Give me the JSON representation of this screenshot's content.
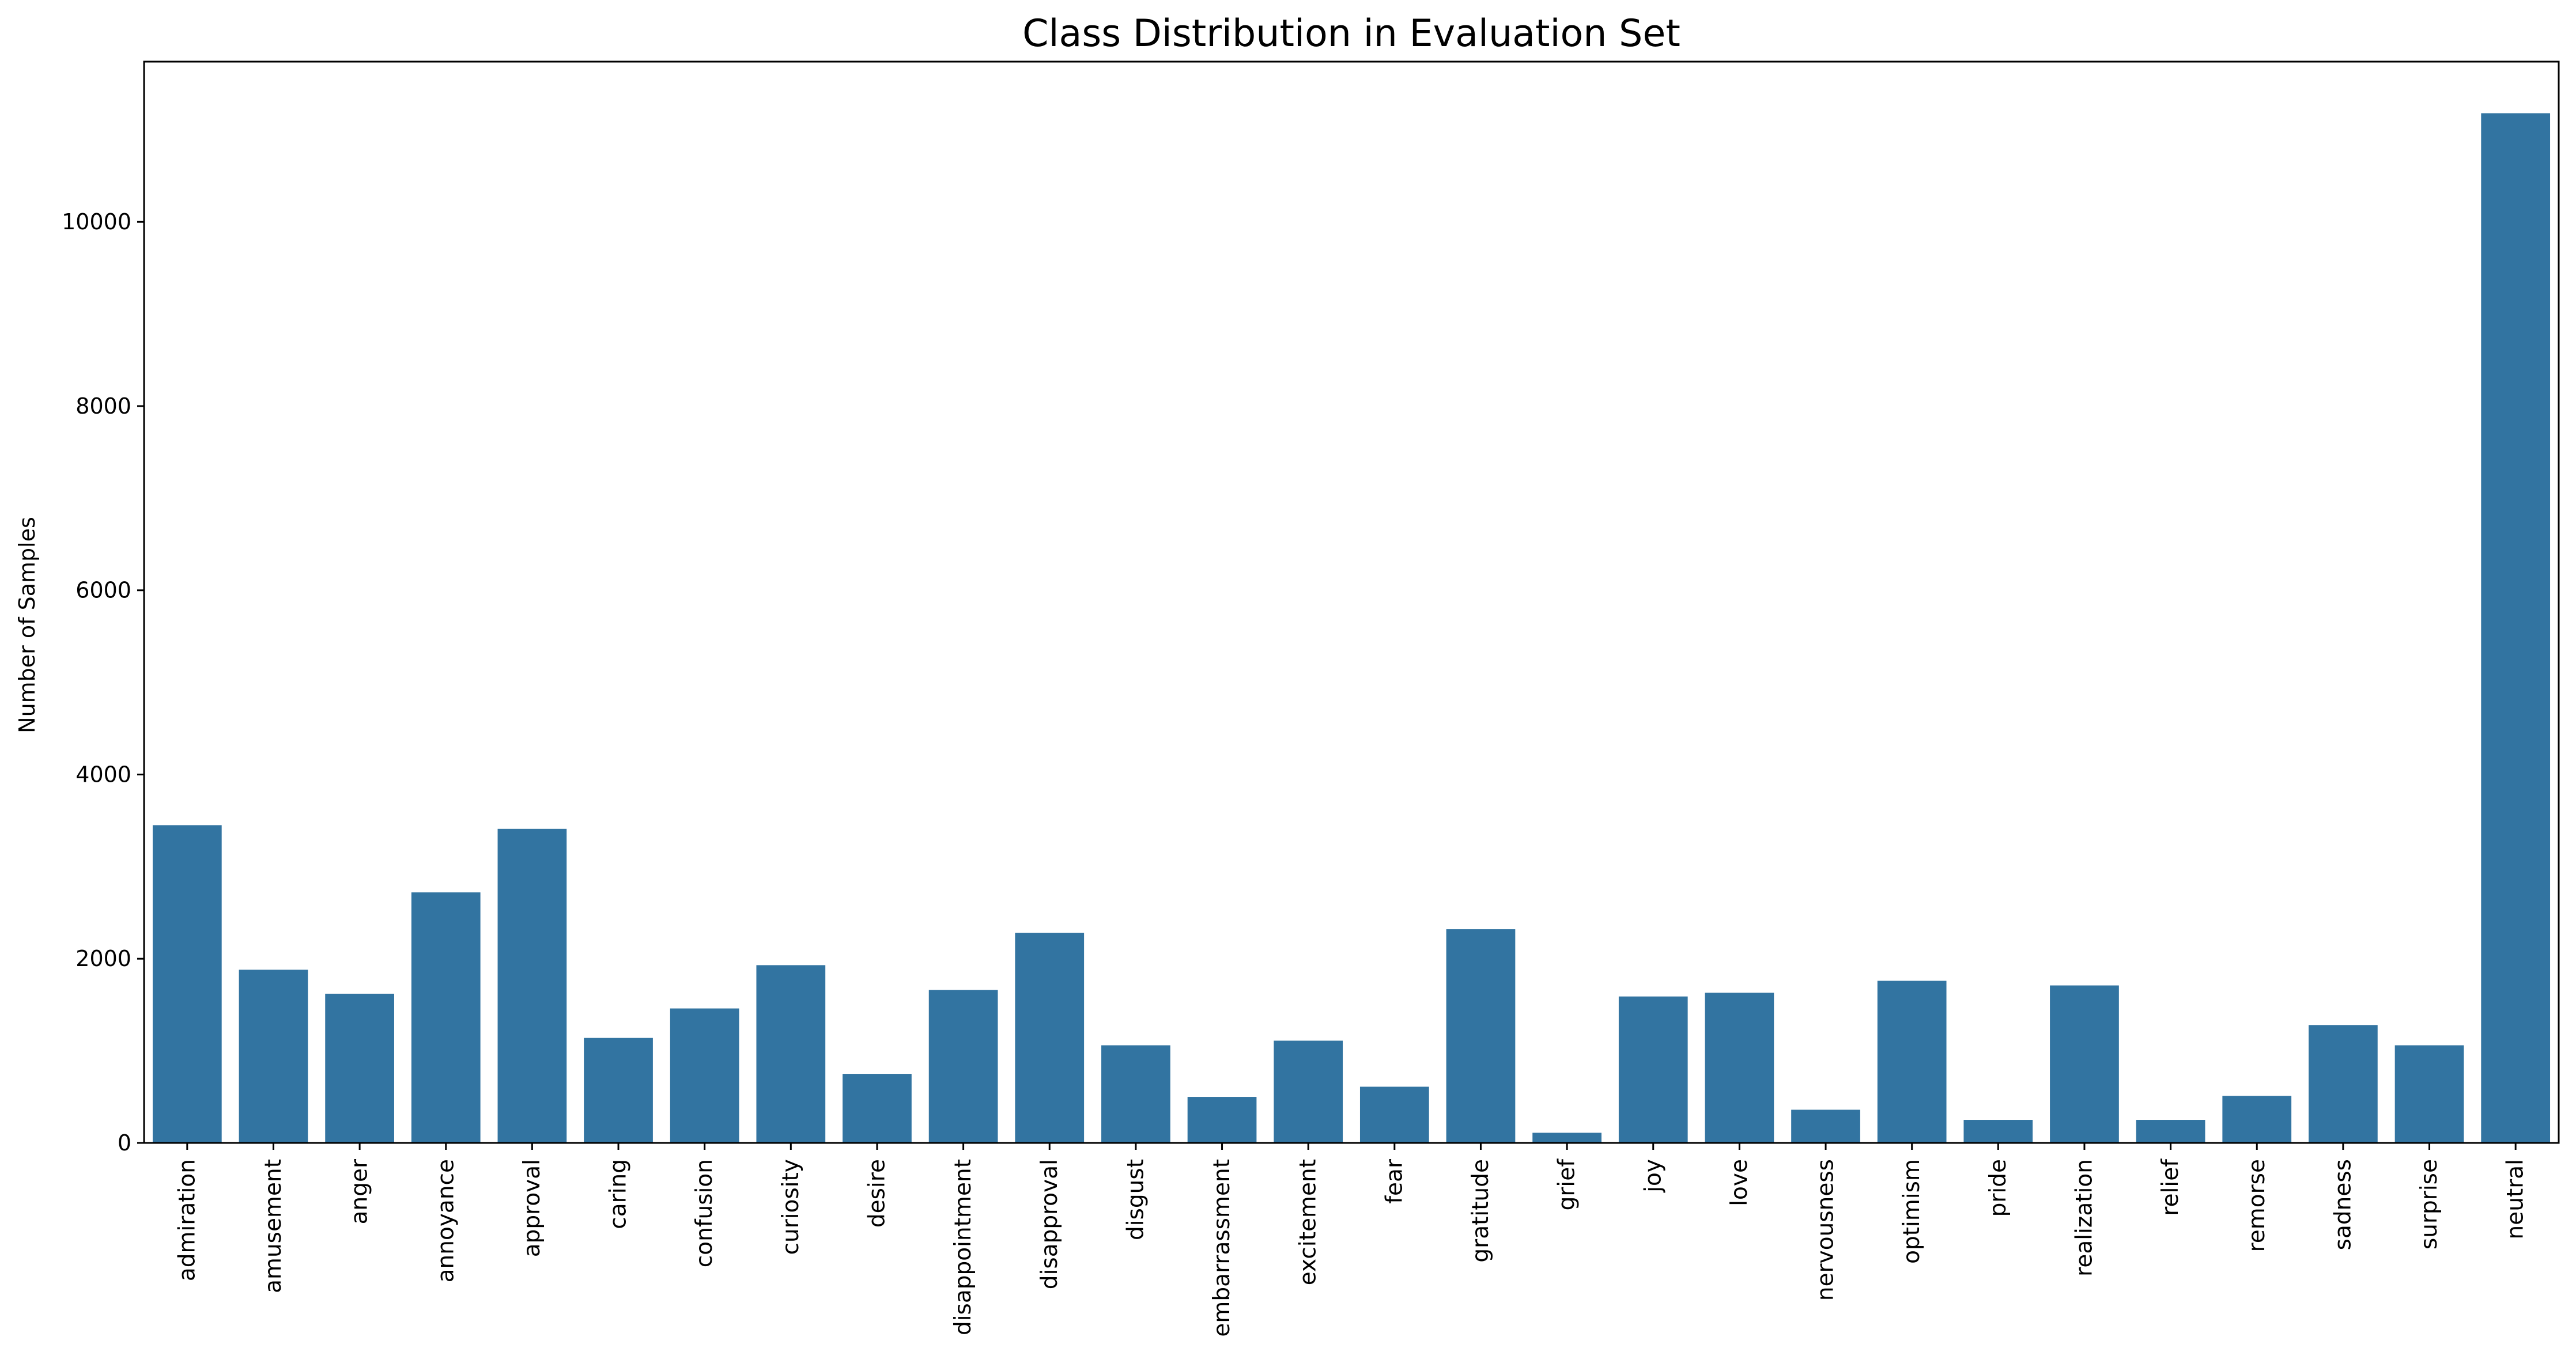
{
  "chart_data": {
    "type": "bar",
    "title": "Class Distribution in Evaluation Set",
    "xlabel": "",
    "ylabel": "Number of Samples",
    "categories": [
      "admiration",
      "amusement",
      "anger",
      "annoyance",
      "approval",
      "caring",
      "confusion",
      "curiosity",
      "desire",
      "disappointment",
      "disapproval",
      "disgust",
      "embarrassment",
      "excitement",
      "fear",
      "gratitude",
      "grief",
      "joy",
      "love",
      "nervousness",
      "optimism",
      "pride",
      "realization",
      "relief",
      "remorse",
      "sadness",
      "surprise",
      "neutral"
    ],
    "values": [
      3450,
      1880,
      1620,
      2720,
      3410,
      1140,
      1460,
      1930,
      750,
      1660,
      2280,
      1060,
      500,
      1110,
      610,
      2320,
      110,
      1590,
      1630,
      360,
      1760,
      250,
      1710,
      250,
      510,
      1280,
      1060,
      11180
    ],
    "yticks": [
      0,
      2000,
      4000,
      6000,
      8000,
      10000
    ],
    "ylim": [
      0,
      11740
    ],
    "bar_color": "#3274a1",
    "grid": false
  }
}
